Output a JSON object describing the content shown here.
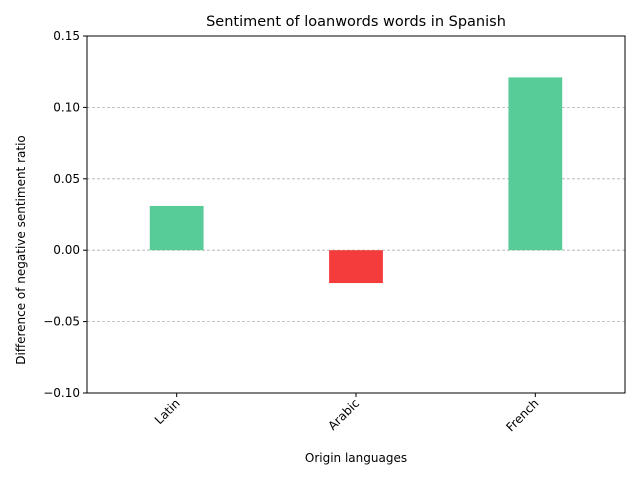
{
  "chart_data": {
    "type": "bar",
    "title": "Sentiment of loanwords words in Spanish",
    "xlabel": "Origin languages",
    "ylabel": "Difference of negative sentiment ratio",
    "categories": [
      "Latin",
      "Arabic",
      "French"
    ],
    "values": [
      0.031,
      -0.023,
      0.121
    ],
    "bar_colors": [
      "#57cc99",
      "#f43c3c",
      "#57cc99"
    ],
    "ylim": [
      -0.1,
      0.15
    ],
    "yticks": [
      -0.1,
      -0.05,
      0.0,
      0.05,
      0.1,
      0.15
    ],
    "ytick_labels": [
      "−0.10",
      "−0.05",
      "0.00",
      "0.05",
      "0.10",
      "0.15"
    ],
    "grid": "y-dashed",
    "grid_color": "#b0b0b0",
    "xtick_rotation": 45
  }
}
